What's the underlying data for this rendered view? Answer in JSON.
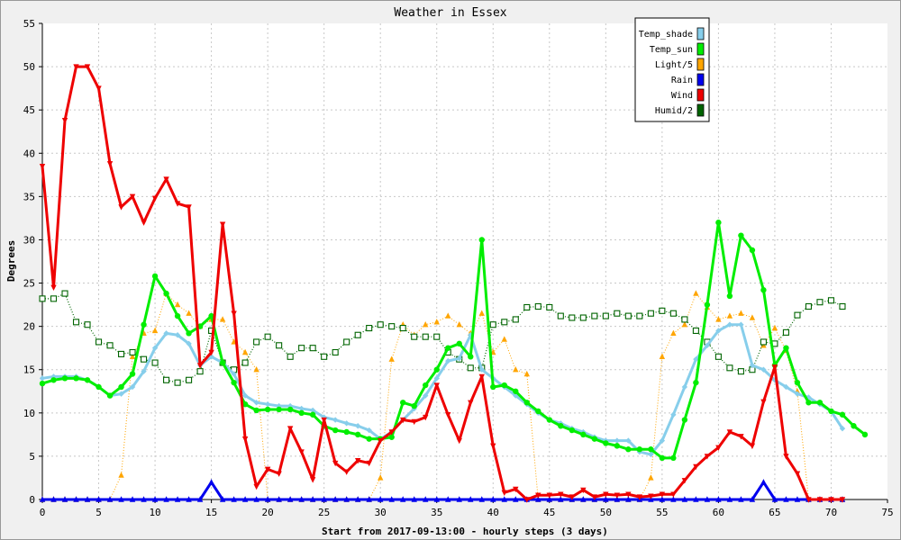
{
  "chart_data": {
    "type": "line",
    "title": "Weather in Essex",
    "xlabel": "Start from 2017-09-13:00 - hourly steps (3 days)",
    "ylabel": "Degrees",
    "xlim": [
      0,
      75
    ],
    "ylim": [
      0,
      55
    ],
    "xticks": [
      0,
      5,
      10,
      15,
      20,
      25,
      30,
      35,
      40,
      45,
      50,
      55,
      60,
      65,
      70,
      75
    ],
    "yticks": [
      0,
      5,
      10,
      15,
      20,
      25,
      30,
      35,
      40,
      45,
      50,
      55
    ],
    "grid": true,
    "legend_position": "top-right",
    "series": [
      {
        "name": "Temp_shade",
        "color": "#87ceeb",
        "marker": "diamond",
        "values": [
          14.0,
          14.2,
          14.2,
          14.2,
          13.8,
          13.0,
          12.0,
          12.2,
          13.0,
          14.8,
          17.5,
          19.2,
          19.0,
          18.0,
          15.5,
          16.5,
          15.8,
          14.5,
          12.0,
          11.2,
          11.0,
          10.8,
          10.8,
          10.5,
          10.3,
          9.5,
          9.2,
          8.8,
          8.5,
          8.0,
          7.0,
          7.8,
          9.2,
          10.5,
          12.0,
          14.0,
          16.0,
          16.3,
          19.0,
          15.0,
          14.0,
          13.0,
          12.0,
          11.0,
          10.0,
          9.2,
          8.8,
          8.2,
          7.8,
          7.2,
          6.8,
          6.8,
          6.8,
          5.5,
          5.2,
          6.8,
          9.8,
          13.0,
          16.2,
          17.8,
          19.5,
          20.2,
          20.2,
          15.5,
          15.0,
          13.8,
          13.0,
          12.2,
          11.8,
          11.0,
          10.2,
          8.2
        ]
      },
      {
        "name": "Temp_sun",
        "color": "#00ee00",
        "marker": "circle",
        "values": [
          13.4,
          13.8,
          14.0,
          14.0,
          13.8,
          13.0,
          12.0,
          13.0,
          14.5,
          20.2,
          25.8,
          23.8,
          21.2,
          19.2,
          20.0,
          21.2,
          15.8,
          13.5,
          11.0,
          10.3,
          10.4,
          10.4,
          10.4,
          10.0,
          9.8,
          8.5,
          8.0,
          7.8,
          7.5,
          7.0,
          7.0,
          7.2,
          11.2,
          10.8,
          13.2,
          15.0,
          17.5,
          18.0,
          16.5,
          30.0,
          13.0,
          13.2,
          12.5,
          11.2,
          10.2,
          9.2,
          8.5,
          8.0,
          7.5,
          7.0,
          6.5,
          6.2,
          5.8,
          5.8,
          5.8,
          4.8,
          4.8,
          9.2,
          13.5,
          22.5,
          32.0,
          23.5,
          30.5,
          28.8,
          24.2,
          15.5,
          17.5,
          13.5,
          11.2,
          11.2,
          10.2,
          9.8,
          8.5,
          7.5
        ]
      },
      {
        "name": "Light/5",
        "color": "#ffa500",
        "marker": "triangle-up",
        "values": [
          0,
          0,
          0,
          0,
          0,
          0,
          0,
          2.8,
          16.5,
          19.2,
          19.5,
          23.8,
          22.5,
          21.5,
          20.0,
          20.8,
          20.8,
          18.2,
          17.0,
          15.0,
          0,
          0,
          0,
          0,
          0,
          0,
          0,
          0,
          0,
          0,
          2.5,
          16.2,
          20.2,
          19.0,
          20.2,
          20.5,
          21.2,
          20.2,
          19.2,
          21.5,
          17.0,
          18.5,
          15.0,
          14.5,
          0,
          0,
          0,
          0,
          0,
          0,
          0,
          0,
          0,
          0,
          2.5,
          16.5,
          19.2,
          20.2,
          23.8,
          22.2,
          20.8,
          21.2,
          21.5,
          21.0,
          17.8,
          19.8,
          17.2,
          12.5,
          0,
          0,
          0,
          0
        ]
      },
      {
        "name": "Rain",
        "color": "#0000ee",
        "marker": "triangle-up",
        "values": [
          0,
          0,
          0,
          0,
          0,
          0,
          0,
          0,
          0,
          0,
          0,
          0,
          0,
          0,
          0,
          2.0,
          0,
          0,
          0,
          0,
          0,
          0,
          0,
          0,
          0,
          0,
          0,
          0,
          0,
          0,
          0,
          0,
          0,
          0,
          0,
          0,
          0,
          0,
          0,
          0,
          0,
          0,
          0,
          0,
          0,
          0,
          0,
          0,
          0,
          0,
          0,
          0,
          0,
          0,
          0,
          0,
          0,
          0,
          0,
          0,
          0,
          0,
          0,
          0,
          2.0,
          0,
          0,
          0,
          0,
          0,
          0,
          0
        ]
      },
      {
        "name": "Wind",
        "color": "#ee0000",
        "marker": "triangle-down",
        "values": [
          38.5,
          24.5,
          43.8,
          50.0,
          50.0,
          47.5,
          38.8,
          33.8,
          35.0,
          32.0,
          34.8,
          37.0,
          34.2,
          33.8,
          15.5,
          17.0,
          31.8,
          21.5,
          7.0,
          1.5,
          3.5,
          3.0,
          8.2,
          5.5,
          2.3,
          9.2,
          4.2,
          3.2,
          4.5,
          4.2,
          6.8,
          7.8,
          9.2,
          9.0,
          9.5,
          13.2,
          9.8,
          6.8,
          11.2,
          14.2,
          6.2,
          0.8,
          1.2,
          0,
          0.5,
          0.5,
          0.6,
          0.3,
          1.1,
          0.3,
          0.6,
          0.5,
          0.6,
          0.3,
          0.4,
          0.6,
          0.6,
          2.2,
          3.8,
          5.0,
          6.0,
          7.8,
          7.3,
          6.2,
          11.3,
          15.3,
          5.0,
          3.0,
          0,
          0,
          0,
          0
        ]
      },
      {
        "name": "Humid/2",
        "color": "#006400",
        "marker": "square",
        "values": [
          23.2,
          23.2,
          23.8,
          20.5,
          20.2,
          18.2,
          17.8,
          16.8,
          17.0,
          16.2,
          15.8,
          13.8,
          13.5,
          13.8,
          14.8,
          19.5,
          15.8,
          15.0,
          15.8,
          18.2,
          18.8,
          17.8,
          16.5,
          17.5,
          17.5,
          16.5,
          17.0,
          18.2,
          19.0,
          19.8,
          20.2,
          20.0,
          19.8,
          18.8,
          18.8,
          18.8,
          17.0,
          16.2,
          15.2,
          15.2,
          20.2,
          20.5,
          20.8,
          22.2,
          22.3,
          22.2,
          21.2,
          21.0,
          21.0,
          21.2,
          21.2,
          21.5,
          21.2,
          21.2,
          21.5,
          21.8,
          21.5,
          20.8,
          19.5,
          18.2,
          16.5,
          15.2,
          14.8,
          15.0,
          18.2,
          18.0,
          19.3,
          21.3,
          22.3,
          22.8,
          23.0,
          22.3
        ]
      }
    ]
  }
}
